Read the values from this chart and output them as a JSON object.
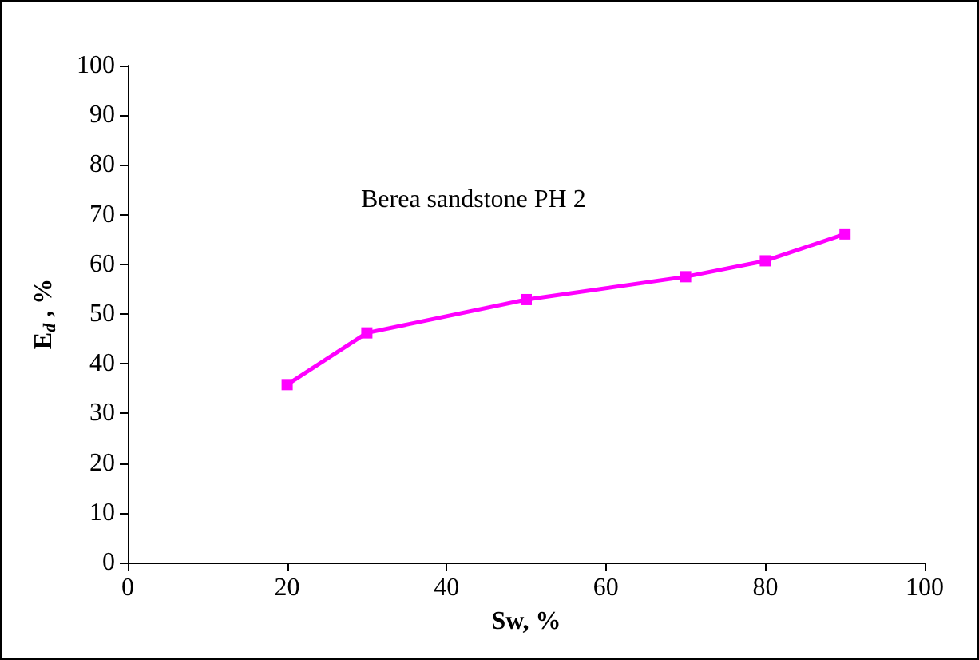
{
  "chart_data": {
    "type": "line",
    "x": [
      20,
      30,
      50,
      70,
      80,
      90
    ],
    "series": [
      {
        "color": "#ff00ff",
        "values": [
          35.8,
          46.2,
          52.9,
          57.5,
          60.7,
          66.1
        ]
      }
    ],
    "xlabel": "Sw, %",
    "ylabel": "E$_{d}$ , %",
    "annotations": [
      "Berea sandstone PH 2"
    ],
    "xlim": [
      0,
      100
    ],
    "xticks": [
      0,
      20,
      40,
      60,
      80,
      100
    ],
    "ylim": [
      0,
      100
    ],
    "yticks": [
      0,
      10,
      20,
      30,
      40,
      50,
      60,
      70,
      80,
      90,
      100
    ],
    "grid": false,
    "marker": "square",
    "line_style": "solid"
  }
}
